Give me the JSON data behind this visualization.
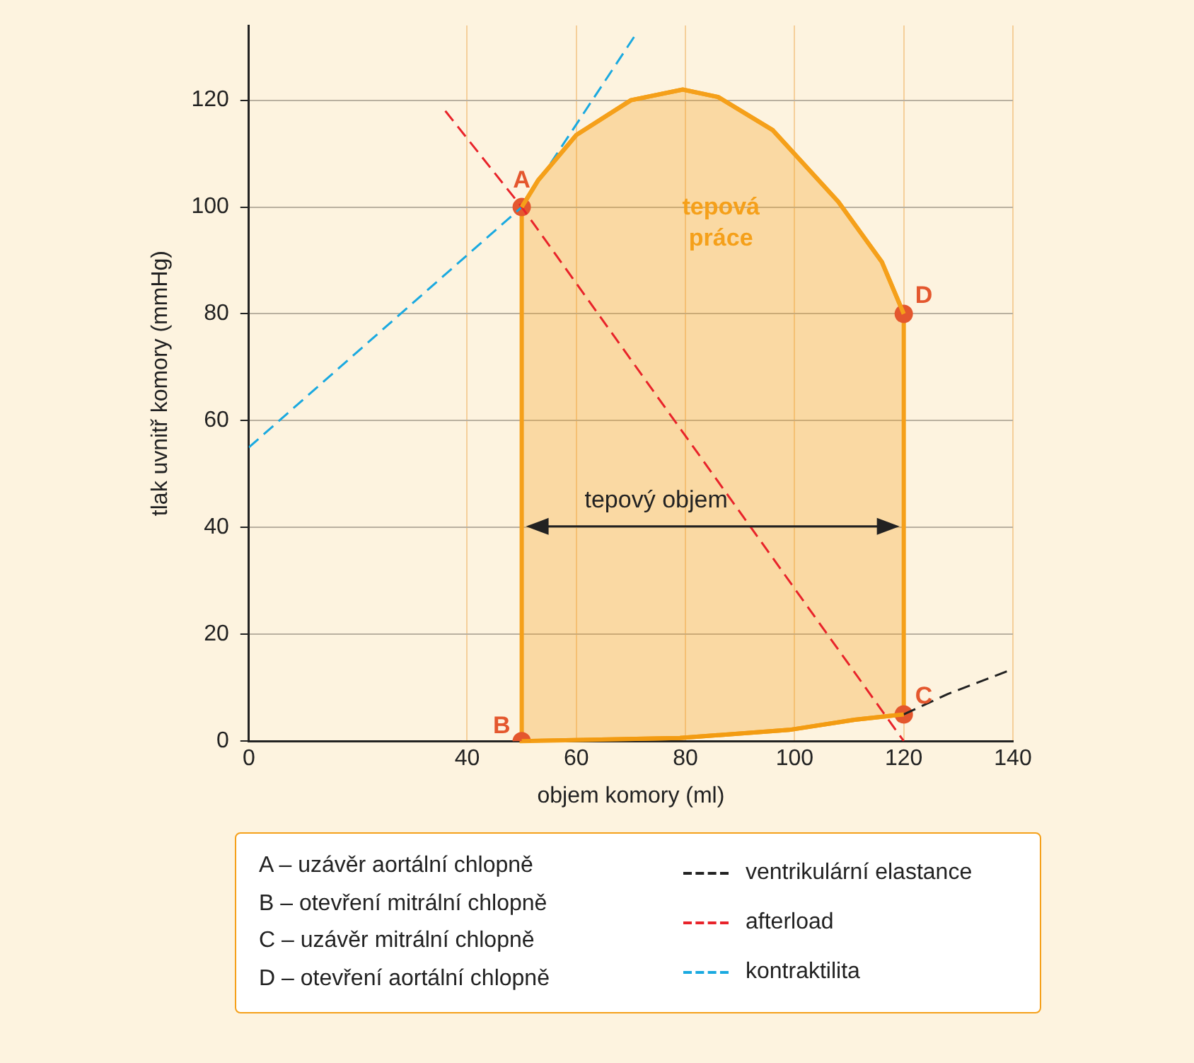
{
  "chart_data": {
    "type": "line",
    "xlabel": "objem komory (ml)",
    "ylabel": "tlak uvnitř komory (mmHg)",
    "xlim": [
      0,
      140
    ],
    "xticks": [
      0,
      40,
      60,
      80,
      100,
      120,
      140
    ],
    "ylim": [
      0,
      134
    ],
    "yticks": [
      0,
      20,
      40,
      60,
      80,
      100,
      120
    ],
    "grid": true,
    "legend": "bottom",
    "marker": "none",
    "series": [
      {
        "name": "tepová práce",
        "color": "#f5a01a",
        "x": [
          50,
          53,
          60,
          70,
          79.5,
          86,
          96,
          108,
          116,
          120
        ],
        "values": [
          100,
          105,
          113.5,
          120,
          122,
          120.6,
          114.4,
          101,
          89.7,
          80
        ]
      },
      {
        "color": "#f39c12",
        "x": [
          50,
          79,
          99,
          111,
          120
        ],
        "values": [
          0,
          0.6,
          2.1,
          4,
          5
        ]
      },
      {
        "name": "ventrikulární elastance",
        "color": "#222222",
        "line_style": "dashed",
        "x": [
          120,
          128,
          139.5
        ],
        "values": [
          5,
          8.8,
          13.3
        ]
      },
      {
        "name": "afterload",
        "color": "#e8232a",
        "line_style": "dashed",
        "x": [
          36,
          50,
          120
        ],
        "values": [
          118,
          100,
          0
        ]
      },
      {
        "name": "kontraktilita",
        "color": "#1aa9e0",
        "line_style": "dashed",
        "x": [
          0,
          50,
          71
        ],
        "values": [
          55,
          100,
          132.5
        ]
      },
      {
        "type": "scatter",
        "marker": "circle",
        "color": "#e4572e",
        "x": [
          50,
          50,
          120,
          120
        ],
        "values": [
          100,
          0,
          5,
          80
        ],
        "value_labels": [
          "A",
          "B",
          "C",
          "D"
        ]
      }
    ],
    "annotations": [
      "A – uzávěr aortální chlopně",
      "B – otevření mitrální chlopně",
      "C – uzávěr mitrální chlopně",
      "D – otevření aortální chlopně"
    ],
    "bands": [
      {
        "axis": "x",
        "from": 50,
        "to": 120,
        "label": "tepový objem"
      }
    ]
  }
}
